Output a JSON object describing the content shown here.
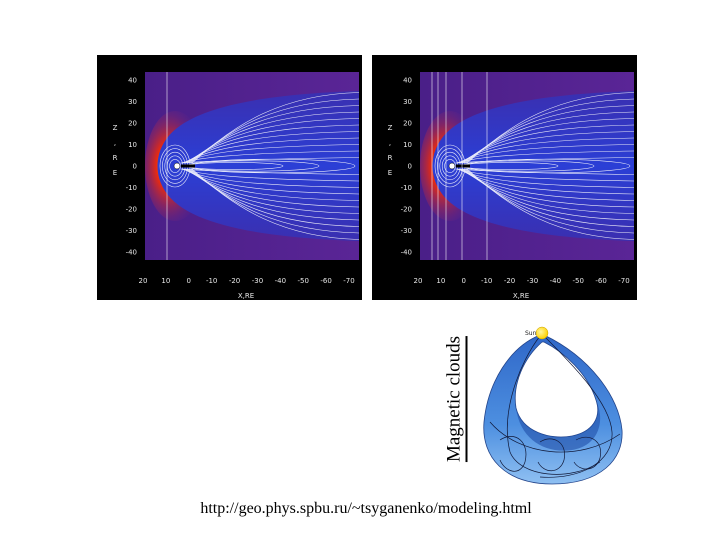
{
  "figures": {
    "simulations": [
      {
        "y_axis_title": [
          "Z",
          ",",
          "R",
          "E"
        ],
        "y_ticks": [
          "40",
          "30",
          "20",
          "10",
          "0",
          "-10",
          "-20",
          "-30",
          "-40"
        ],
        "x_ticks": [
          "20",
          "10",
          "0",
          "-10",
          "-20",
          "-30",
          "-40",
          "-50",
          "-60",
          "-70"
        ],
        "x_axis_title": "X,RE",
        "vertical_lines": 1
      },
      {
        "y_axis_title": [
          "Z",
          ",",
          "R",
          "E"
        ],
        "y_ticks": [
          "40",
          "30",
          "20",
          "10",
          "0",
          "-10",
          "-20",
          "-30",
          "-40"
        ],
        "x_ticks": [
          "20",
          "10",
          "0",
          "-10",
          "-20",
          "-30",
          "-40",
          "-50",
          "-60",
          "-70"
        ],
        "x_axis_title": "X,RE",
        "vertical_lines": 5
      }
    ],
    "title": "Magnetic clouds",
    "cloud": {
      "sun_label": "Sun"
    }
  },
  "colors": {
    "background_purple": "#5a2596",
    "field_blue": "#2b3fd6",
    "field_lines": "#ffffff",
    "boundary_red": "#e82a10",
    "cloud_blue": "#4d8fe0",
    "sun_yellow": "#ffe100"
  },
  "footer": {
    "url": "http://geo.phys.spbu.ru/~tsyganenko/modeling.html"
  }
}
